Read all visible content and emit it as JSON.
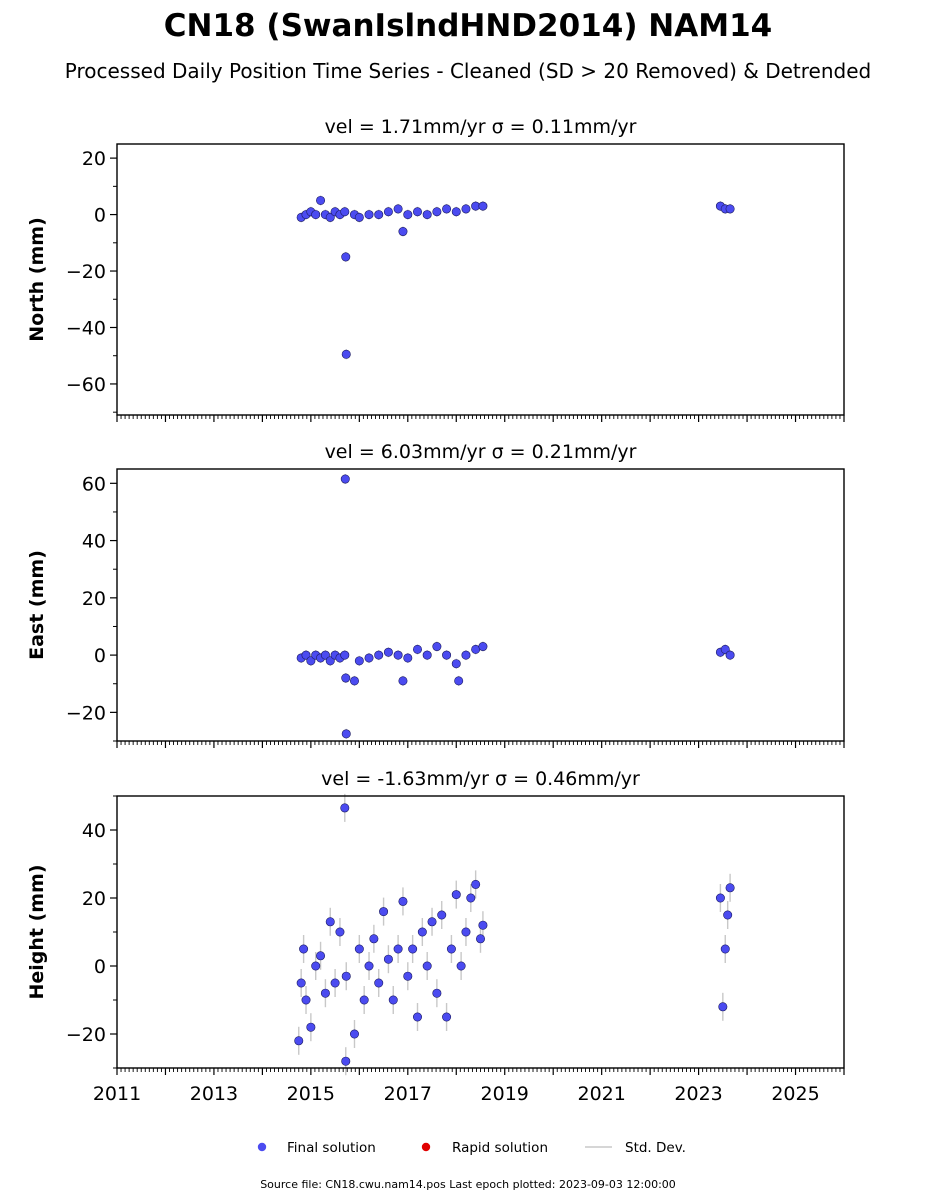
{
  "title": "CN18 (SwanIslndHND2014) NAM14",
  "subtitle": "Processed Daily Position Time Series - Cleaned (SD > 20 Removed) & Detrended",
  "legend": {
    "final": "Final solution",
    "rapid": "Rapid solution",
    "std": "Std. Dev."
  },
  "footer": "Source file: CN18.cwu.nam14.pos  Last epoch plotted: 2023-09-03 12:00:00",
  "colors": {
    "final": "#4b4bf0",
    "rapid": "#e00000",
    "std": "#c8c8c8"
  },
  "chart_data": [
    {
      "type": "scatter",
      "panel": "north",
      "vel_title": "vel = 1.71mm/yr   σ = 0.11mm/yr",
      "ylabel": "North (mm)",
      "xlim": [
        2011,
        2026
      ],
      "ylim": [
        -71,
        25
      ],
      "yticks": [
        -60,
        -40,
        -20,
        0,
        20
      ],
      "yticklabels": [
        "−60",
        "−40",
        "−20",
        "0",
        "20"
      ],
      "grid": false,
      "series": [
        {
          "name": "Final solution",
          "x": [
            2014.8,
            2014.9,
            2015.0,
            2015.1,
            2015.2,
            2015.3,
            2015.4,
            2015.5,
            2015.6,
            2015.7,
            2015.72,
            2015.73,
            2015.9,
            2016.0,
            2016.2,
            2016.4,
            2016.6,
            2016.8,
            2016.9,
            2017.0,
            2017.2,
            2017.4,
            2017.6,
            2017.8,
            2018.0,
            2018.2,
            2018.4,
            2018.55,
            2023.45,
            2023.55,
            2023.65
          ],
          "y": [
            -1,
            0,
            1,
            0,
            5,
            0,
            -1,
            1,
            0,
            1,
            -15,
            -49.5,
            0,
            -1,
            0,
            0,
            1,
            2,
            -6,
            0,
            1,
            0,
            1,
            2,
            1,
            2,
            3,
            3,
            3,
            2,
            2
          ]
        }
      ]
    },
    {
      "type": "scatter",
      "panel": "east",
      "vel_title": "vel = 6.03mm/yr   σ = 0.21mm/yr",
      "ylabel": "East (mm)",
      "xlim": [
        2011,
        2026
      ],
      "ylim": [
        -30,
        65
      ],
      "yticks": [
        -20,
        0,
        20,
        40,
        60
      ],
      "yticklabels": [
        "−20",
        "0",
        "20",
        "40",
        "60"
      ],
      "grid": false,
      "series": [
        {
          "name": "Final solution",
          "x": [
            2014.8,
            2014.9,
            2015.0,
            2015.1,
            2015.2,
            2015.3,
            2015.4,
            2015.5,
            2015.6,
            2015.7,
            2015.71,
            2015.72,
            2015.73,
            2015.9,
            2016.0,
            2016.2,
            2016.4,
            2016.6,
            2016.8,
            2016.9,
            2017.0,
            2017.2,
            2017.4,
            2017.6,
            2017.8,
            2018.0,
            2018.05,
            2018.2,
            2018.4,
            2018.55,
            2023.45,
            2023.55,
            2023.65
          ],
          "y": [
            -1,
            0,
            -2,
            0,
            -1,
            0,
            -2,
            0,
            -1,
            0,
            61.5,
            -8,
            -27.5,
            -9,
            -2,
            -1,
            0,
            1,
            0,
            -9,
            -1,
            2,
            0,
            3,
            0,
            -3,
            -9,
            0,
            2,
            3,
            1,
            2,
            0
          ]
        }
      ]
    },
    {
      "type": "scatter",
      "panel": "height",
      "vel_title": "vel = -1.63mm/yr   σ = 0.46mm/yr",
      "ylabel": "Height (mm)",
      "xlim": [
        2011,
        2026
      ],
      "ylim": [
        -30,
        50
      ],
      "yticks": [
        -20,
        0,
        20,
        40
      ],
      "yticklabels": [
        "−20",
        "0",
        "20",
        "40"
      ],
      "xticks": [
        2011,
        2013,
        2015,
        2017,
        2019,
        2021,
        2023,
        2025
      ],
      "xticklabels": [
        "2011",
        "2013",
        "2015",
        "2017",
        "2019",
        "2021",
        "2023",
        "2025"
      ],
      "grid": false,
      "series": [
        {
          "name": "Final solution",
          "x": [
            2014.75,
            2014.8,
            2014.85,
            2014.9,
            2015.0,
            2015.1,
            2015.2,
            2015.3,
            2015.4,
            2015.5,
            2015.6,
            2015.7,
            2015.72,
            2015.73,
            2015.9,
            2016.0,
            2016.1,
            2016.2,
            2016.3,
            2016.4,
            2016.5,
            2016.6,
            2016.7,
            2016.8,
            2016.9,
            2017.0,
            2017.1,
            2017.2,
            2017.3,
            2017.4,
            2017.5,
            2017.6,
            2017.7,
            2017.8,
            2017.9,
            2018.0,
            2018.1,
            2018.2,
            2018.3,
            2018.4,
            2018.5,
            2018.55,
            2023.45,
            2023.5,
            2023.55,
            2023.6,
            2023.65
          ],
          "y": [
            -22,
            -5,
            5,
            -10,
            -18,
            0,
            3,
            -8,
            13,
            -5,
            10,
            46.5,
            -28,
            -3,
            -20,
            5,
            -10,
            0,
            8,
            -5,
            16,
            2,
            -10,
            5,
            19,
            -3,
            5,
            -15,
            10,
            0,
            13,
            -8,
            15,
            -15,
            5,
            21,
            0,
            10,
            20,
            24,
            8,
            12,
            20,
            -12,
            5,
            15,
            23
          ]
        }
      ]
    }
  ]
}
